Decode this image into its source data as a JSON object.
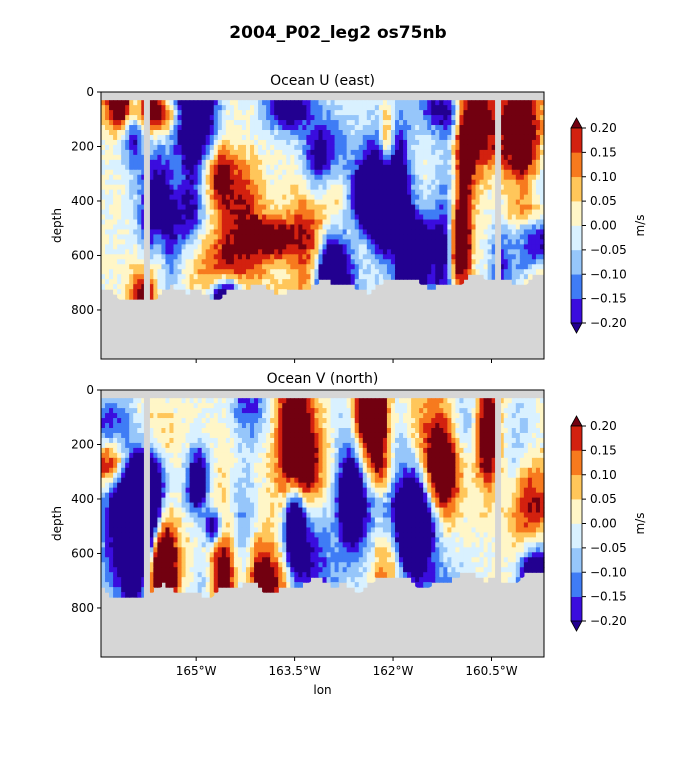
{
  "figure_title": "2004_P02_leg2 os75nb",
  "chart_data": [
    {
      "type": "heatmap",
      "title": "Ocean U (east)",
      "ylabel": "depth",
      "xlabel": "",
      "x_ticks": [
        -165,
        -163.5,
        -162,
        -160.5
      ],
      "x_tick_labels": [
        "165°W",
        "163.5°W",
        "162°W",
        "160.5°W"
      ],
      "y_ticks": [
        0,
        200,
        400,
        600,
        800
      ],
      "xlim": [
        -166.45,
        -159.7
      ],
      "ylim": [
        980,
        0
      ],
      "y_inverted": true,
      "grid": false,
      "colorbar": {
        "label": "m/s",
        "levels": [
          -0.2,
          -0.15,
          -0.1,
          -0.05,
          0.0,
          0.05,
          0.1,
          0.15,
          0.2
        ],
        "tick_labels": [
          "−0.20",
          "−0.15",
          "−0.10",
          "−0.05",
          "0.00",
          "0.05",
          "0.10",
          "0.15",
          "0.20"
        ],
        "colors": [
          "#3a0dde",
          "#3f7cf5",
          "#96c6fa",
          "#d9f1ff",
          "#fff6c7",
          "#ffc65a",
          "#f77a1e",
          "#d3210f"
        ],
        "under_color": "#220090",
        "over_color": "#720010",
        "extend": "both"
      },
      "mask_color": "#d6d6d6",
      "data_gaps_lon": [
        -165.75,
        -160.4
      ],
      "seed": 11
    },
    {
      "type": "heatmap",
      "title": "Ocean V (north)",
      "ylabel": "depth",
      "xlabel": "lon",
      "x_ticks": [
        -165,
        -163.5,
        -162,
        -160.5
      ],
      "x_tick_labels": [
        "165°W",
        "163.5°W",
        "162°W",
        "160.5°W"
      ],
      "y_ticks": [
        0,
        200,
        400,
        600,
        800
      ],
      "xlim": [
        -166.45,
        -159.7
      ],
      "ylim": [
        980,
        0
      ],
      "y_inverted": true,
      "grid": false,
      "colorbar": {
        "label": "m/s",
        "levels": [
          -0.2,
          -0.15,
          -0.1,
          -0.05,
          0.0,
          0.05,
          0.1,
          0.15,
          0.2
        ],
        "tick_labels": [
          "−0.20",
          "−0.15",
          "−0.10",
          "−0.05",
          "0.00",
          "0.05",
          "0.10",
          "0.15",
          "0.20"
        ],
        "colors": [
          "#3a0dde",
          "#3f7cf5",
          "#96c6fa",
          "#d9f1ff",
          "#fff6c7",
          "#ffc65a",
          "#f77a1e",
          "#d3210f"
        ],
        "under_color": "#220090",
        "over_color": "#720010",
        "extend": "both"
      },
      "mask_color": "#d6d6d6",
      "data_gaps_lon": [
        -165.75,
        -160.4
      ],
      "seed": 37
    }
  ]
}
